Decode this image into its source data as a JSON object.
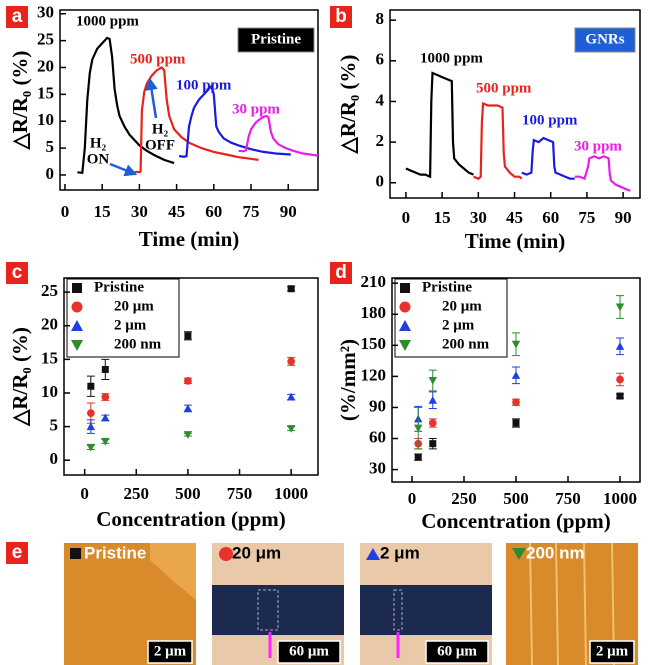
{
  "chart_data": [
    {
      "type": "line",
      "panel_label": "a",
      "title": "Pristine",
      "title_color": "#000000",
      "x_label": "Time (min)",
      "y_label": "△R/R₀ (%)",
      "xlim": [
        -2,
        102
      ],
      "ylim": [
        -2.8,
        30.7
      ],
      "xticks": [
        0,
        15,
        30,
        45,
        60,
        75,
        90
      ],
      "yticks": [
        0,
        5,
        10,
        15,
        20,
        25,
        30
      ],
      "annotations": [
        [
          "H₂",
          "ON"
        ],
        [
          "H₂",
          "OFF"
        ]
      ],
      "series": [
        {
          "name": "1000 ppm",
          "color": "#000000",
          "x": [
            5,
            7,
            8,
            9,
            10,
            11,
            13,
            15,
            17,
            18,
            19,
            20,
            21,
            22,
            24,
            26,
            28,
            30,
            33,
            36,
            40,
            44
          ],
          "values": [
            0.5,
            0.4,
            5,
            14,
            19,
            21.5,
            23.5,
            24.5,
            25.5,
            25.3,
            22,
            16,
            13,
            11,
            9,
            7.5,
            6.5,
            5.5,
            4.5,
            3.7,
            2.8,
            2.2
          ]
        },
        {
          "name": "500 ppm",
          "color": "#e8231c",
          "x": [
            28,
            29,
            30,
            30.5,
            31,
            32,
            33,
            35,
            37,
            39,
            40,
            41,
            42,
            44,
            47,
            50,
            55,
            60,
            65,
            70,
            75,
            78
          ],
          "values": [
            0.5,
            0.6,
            0.5,
            0.7,
            12,
            15.5,
            17,
            18.5,
            19.5,
            20,
            19.5,
            14,
            11,
            8.5,
            7,
            6,
            5,
            4.3,
            3.8,
            3.3,
            3,
            2.8
          ]
        },
        {
          "name": "100 ppm",
          "color": "#1a1ae0",
          "x": [
            46,
            48,
            49,
            50,
            51,
            52,
            54,
            56,
            58,
            59,
            60,
            61,
            62,
            64,
            67,
            70,
            75,
            80,
            85,
            91
          ],
          "values": [
            3.5,
            3.4,
            3.5,
            9,
            11,
            12.5,
            14,
            15,
            16,
            16.5,
            15,
            9,
            8,
            6.8,
            6,
            5.5,
            4.8,
            4.3,
            4,
            3.8
          ]
        },
        {
          "name": "30 ppm",
          "color": "#e81ee8",
          "x": [
            70,
            72,
            73,
            74,
            75,
            77,
            79,
            81,
            82,
            83,
            84,
            86,
            89,
            92,
            96,
            102
          ],
          "values": [
            4.5,
            4.4,
            4.6,
            7,
            8.5,
            9.8,
            10.5,
            11,
            10.8,
            8,
            6.8,
            5.7,
            5,
            4.5,
            4,
            3.6
          ]
        }
      ]
    },
    {
      "type": "line",
      "panel_label": "b",
      "title": "GNRs",
      "title_color": "#1f5fd6",
      "x_label": "Time (min)",
      "y_label": "△R/R₀ (%)",
      "xlim": [
        -6.6,
        97
      ],
      "ylim": [
        -0.75,
        8.5
      ],
      "xticks": [
        0,
        15,
        30,
        45,
        60,
        75,
        90
      ],
      "yticks": [
        0,
        2,
        4,
        6,
        8
      ],
      "series": [
        {
          "name": "1000 ppm",
          "color": "#000000",
          "x": [
            0,
            2,
            4,
            6,
            8,
            10,
            10.5,
            11,
            13,
            15,
            17,
            19,
            19.5,
            20,
            22,
            24,
            26,
            28
          ],
          "values": [
            0.7,
            0.6,
            0.5,
            0.4,
            0.4,
            0.3,
            4,
            5.4,
            5.3,
            5.2,
            5.1,
            5.0,
            2,
            1.2,
            0.9,
            0.7,
            0.5,
            0.4
          ]
        },
        {
          "name": "500 ppm",
          "color": "#e8231c",
          "x": [
            28,
            30,
            31,
            31.5,
            32,
            34,
            36,
            38,
            40,
            40.5,
            41,
            43,
            45,
            47,
            48
          ],
          "values": [
            0.3,
            0.2,
            0.3,
            3,
            3.9,
            3.8,
            3.8,
            3.8,
            3.7,
            1.5,
            0.8,
            0.5,
            0.3,
            0.3,
            0.2
          ]
        },
        {
          "name": "100 ppm",
          "color": "#1a1ae0",
          "x": [
            48,
            50,
            52,
            52.5,
            53,
            55,
            57,
            59,
            61,
            61.5,
            62,
            64,
            66,
            68,
            70
          ],
          "values": [
            0.5,
            0.4,
            0.5,
            1.5,
            2.1,
            2.0,
            2.2,
            2.1,
            2.0,
            0.8,
            0.5,
            0.4,
            0.3,
            0.2,
            0.2
          ]
        },
        {
          "name": "30 ppm",
          "color": "#e81ee8",
          "x": [
            70,
            72,
            74,
            75.5,
            76,
            78,
            80,
            82,
            84,
            84.5,
            85,
            87,
            89,
            91,
            93
          ],
          "values": [
            0.3,
            0.3,
            0.2,
            0.8,
            1.2,
            1.3,
            1.2,
            1.3,
            1.2,
            0.4,
            0.1,
            -0.1,
            -0.2,
            -0.3,
            -0.4
          ]
        }
      ]
    },
    {
      "type": "scatter",
      "panel_label": "c",
      "x_label": "Concentration (ppm)",
      "y_label": "△R/R₀ (%)",
      "xlim": [
        -100,
        1130
      ],
      "ylim": [
        -2.2,
        27.1
      ],
      "xticks": [
        0,
        250,
        500,
        750,
        1000
      ],
      "yticks": [
        0,
        5,
        10,
        15,
        20,
        25
      ],
      "x": [
        30,
        100,
        500,
        1000
      ],
      "series": [
        {
          "name": "Pristine",
          "color": "#111111",
          "marker": "square",
          "values": [
            11,
            13.5,
            18.5,
            25.5
          ],
          "errors": [
            1.5,
            1.5,
            0.6,
            0.3
          ]
        },
        {
          "name": "20 μm",
          "color": "#e8322b",
          "marker": "circle",
          "values": [
            7,
            9.4,
            11.8,
            14.7
          ],
          "errors": [
            1.5,
            0.5,
            0.4,
            0.6
          ]
        },
        {
          "name": "2 μm",
          "color": "#1f3fe0",
          "marker": "triangle",
          "values": [
            5,
            6.3,
            7.7,
            9.4
          ],
          "errors": [
            1,
            0.4,
            0.5,
            0.4
          ]
        },
        {
          "name": "200 nm",
          "color": "#2e8b2e",
          "marker": "triangle-down",
          "values": [
            1.9,
            2.8,
            3.8,
            4.7
          ],
          "errors": [
            0.3,
            0.3,
            0.2,
            0.3
          ]
        }
      ]
    },
    {
      "type": "scatter",
      "panel_label": "d",
      "x_label": "Concentration (ppm)",
      "y_label": "(%/mm²)",
      "xlim": [
        -96,
        1096
      ],
      "ylim": [
        18,
        215
      ],
      "xticks": [
        0,
        250,
        500,
        750,
        1000
      ],
      "yticks": [
        30,
        60,
        90,
        120,
        150,
        180,
        210
      ],
      "x": [
        30,
        100,
        500,
        1000
      ],
      "series": [
        {
          "name": "Pristine",
          "color": "#111111",
          "marker": "square",
          "values": [
            42,
            55,
            75,
            101
          ],
          "errors": [
            3,
            5,
            4,
            2
          ]
        },
        {
          "name": "20 μm",
          "color": "#e8322b",
          "marker": "circle",
          "values": [
            55,
            75,
            95,
            117
          ],
          "errors": [
            5,
            4,
            3,
            6
          ]
        },
        {
          "name": "2 μm",
          "color": "#1f3fe0",
          "marker": "triangle",
          "values": [
            79,
            97,
            121,
            149
          ],
          "errors": [
            12,
            8,
            8,
            8
          ]
        },
        {
          "name": "200 nm",
          "color": "#2e8b2e",
          "marker": "triangle-down",
          "values": [
            70,
            116,
            151,
            187
          ],
          "errors": [
            20,
            10,
            11,
            11
          ]
        }
      ]
    }
  ],
  "panel_e": {
    "label": "e",
    "images": [
      {
        "caption": "Pristine",
        "scale_bar": "2 μm"
      },
      {
        "caption": "20 μm",
        "scale_bar": "60 μm"
      },
      {
        "caption": "2 μm",
        "scale_bar": "60 μm"
      },
      {
        "caption": "200 nm",
        "scale_bar": "2 μm"
      }
    ]
  }
}
